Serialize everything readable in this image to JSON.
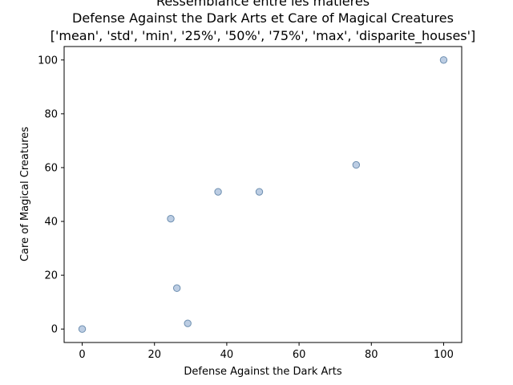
{
  "chart_data": {
    "type": "scatter",
    "title": [
      "Ressemblance entre les matieres",
      "Defense Against the Dark Arts et Care of Magical Creatures",
      "['mean', 'std', 'min', '25%', '50%', '75%', 'max', 'disparite_houses']"
    ],
    "xlabel": "Defense Against the Dark Arts",
    "ylabel": "Care of Magical Creatures",
    "xlim": [
      -5,
      105
    ],
    "ylim": [
      -5,
      105
    ],
    "xticks": [
      0,
      20,
      40,
      60,
      80,
      100
    ],
    "yticks": [
      0,
      20,
      40,
      60,
      80,
      100
    ],
    "grid": false,
    "marker_fill": "#b0c4de",
    "marker_edge": "#6e8fb0",
    "points": [
      {
        "x": 0,
        "y": 0
      },
      {
        "x": 24.5,
        "y": 41
      },
      {
        "x": 26.2,
        "y": 15.2
      },
      {
        "x": 29.2,
        "y": 2.1
      },
      {
        "x": 37.6,
        "y": 51
      },
      {
        "x": 49,
        "y": 51
      },
      {
        "x": 75.8,
        "y": 61
      },
      {
        "x": 100,
        "y": 100
      }
    ]
  }
}
